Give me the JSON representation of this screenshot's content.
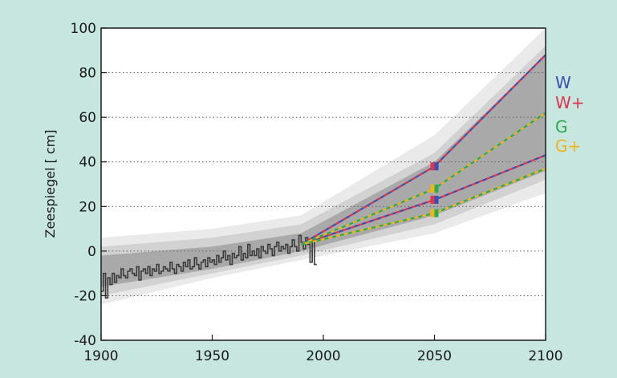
{
  "chart_data": {
    "type": "line",
    "ylabel": "Zeespiegel [ cm]",
    "xlim": [
      1900,
      2100
    ],
    "ylim": [
      -40,
      100
    ],
    "x_ticks": [
      1900,
      1950,
      2000,
      2050,
      2100
    ],
    "y_ticks": [
      -40,
      -20,
      0,
      20,
      40,
      60,
      80,
      100
    ],
    "grid": "horizontal dotted",
    "legend_position": "right",
    "uncertainty_band": {
      "x": [
        1900,
        1950,
        1990,
        2050,
        2100
      ],
      "outer_low": [
        -24,
        -12,
        -4,
        8,
        26
      ],
      "outer_high": [
        6,
        10,
        16,
        52,
        100
      ],
      "mid_low": [
        -20,
        -10,
        -2,
        12,
        32
      ],
      "mid_high": [
        2,
        6,
        12,
        44,
        92
      ],
      "inner_low": [
        -16,
        -8,
        0,
        16,
        36
      ],
      "inner_high": [
        -2,
        2,
        8,
        40,
        88
      ]
    },
    "observed": {
      "x": [
        1900,
        1901,
        1902,
        1903,
        1904,
        1905,
        1906,
        1907,
        1908,
        1909,
        1910,
        1911,
        1912,
        1913,
        1914,
        1915,
        1916,
        1917,
        1918,
        1919,
        1920,
        1921,
        1922,
        1923,
        1924,
        1925,
        1926,
        1927,
        1928,
        1929,
        1930,
        1931,
        1932,
        1933,
        1934,
        1935,
        1936,
        1937,
        1938,
        1939,
        1940,
        1941,
        1942,
        1943,
        1944,
        1945,
        1946,
        1947,
        1948,
        1949,
        1950,
        1951,
        1952,
        1953,
        1954,
        1955,
        1956,
        1957,
        1958,
        1959,
        1960,
        1961,
        1962,
        1963,
        1964,
        1965,
        1966,
        1967,
        1968,
        1969,
        1970,
        1971,
        1972,
        1973,
        1974,
        1975,
        1976,
        1977,
        1978,
        1979,
        1980,
        1981,
        1982,
        1983,
        1984,
        1985,
        1986,
        1987,
        1988,
        1989,
        1990,
        1991,
        1992,
        1993,
        1994,
        1995,
        1996
      ],
      "y": [
        -18,
        -10,
        -21,
        -12,
        -15,
        -10,
        -14,
        -11,
        -12,
        -8,
        -11,
        -12,
        -9,
        -8,
        -10,
        -11,
        -7,
        -13,
        -9,
        -8,
        -10,
        -7,
        -11,
        -8,
        -9,
        -6,
        -10,
        -9,
        -7,
        -8,
        -9,
        -5,
        -8,
        -10,
        -6,
        -7,
        -9,
        -5,
        -7,
        -4,
        -8,
        -7,
        -3,
        -6,
        -8,
        -5,
        -4,
        -7,
        -3,
        -5,
        -4,
        -6,
        -2,
        -5,
        -3,
        0,
        -4,
        -2,
        -6,
        -1,
        -3,
        -2,
        2,
        -4,
        -1,
        -3,
        3,
        -2,
        0,
        -2,
        1,
        -3,
        2,
        0,
        -1,
        3,
        1,
        -2,
        2,
        4,
        0,
        2,
        1,
        3,
        -1,
        2,
        5,
        2,
        0,
        7,
        4,
        1,
        6,
        3,
        -5,
        4,
        -6
      ]
    },
    "series": [
      {
        "name": "W",
        "color": "#3b4fb0",
        "x": [
          1990,
          2050,
          2100
        ],
        "values": [
          3,
          38,
          88
        ]
      },
      {
        "name": "W+",
        "color": "#e0344d",
        "x": [
          1990,
          2050,
          2100
        ],
        "values": [
          3,
          23,
          43
        ]
      },
      {
        "name": "G",
        "color": "#2bab4f",
        "x": [
          1990,
          2050,
          2100
        ],
        "values": [
          3,
          28,
          62
        ]
      },
      {
        "name": "G+",
        "color": "#f0b419",
        "x": [
          1990,
          2050,
          2100
        ],
        "values": [
          3,
          17,
          37
        ]
      }
    ],
    "markers_2050": [
      {
        "series": "W",
        "value": 38,
        "colors": [
          "#3b4fb0",
          "#e0344d"
        ]
      },
      {
        "series": "G",
        "value": 28,
        "colors": [
          "#2bab4f",
          "#f0b419"
        ]
      },
      {
        "series": "W+",
        "value": 23,
        "colors": [
          "#3b4fb0",
          "#e0344d"
        ]
      },
      {
        "series": "G+",
        "value": 17,
        "colors": [
          "#2bab4f",
          "#f0b419"
        ]
      }
    ],
    "legend": [
      {
        "label": "W",
        "color": "#3b4fb0"
      },
      {
        "label": "W+",
        "color": "#e0344d"
      },
      {
        "label": "G",
        "color": "#2bab4f"
      },
      {
        "label": "G+",
        "color": "#f0b419"
      }
    ]
  }
}
